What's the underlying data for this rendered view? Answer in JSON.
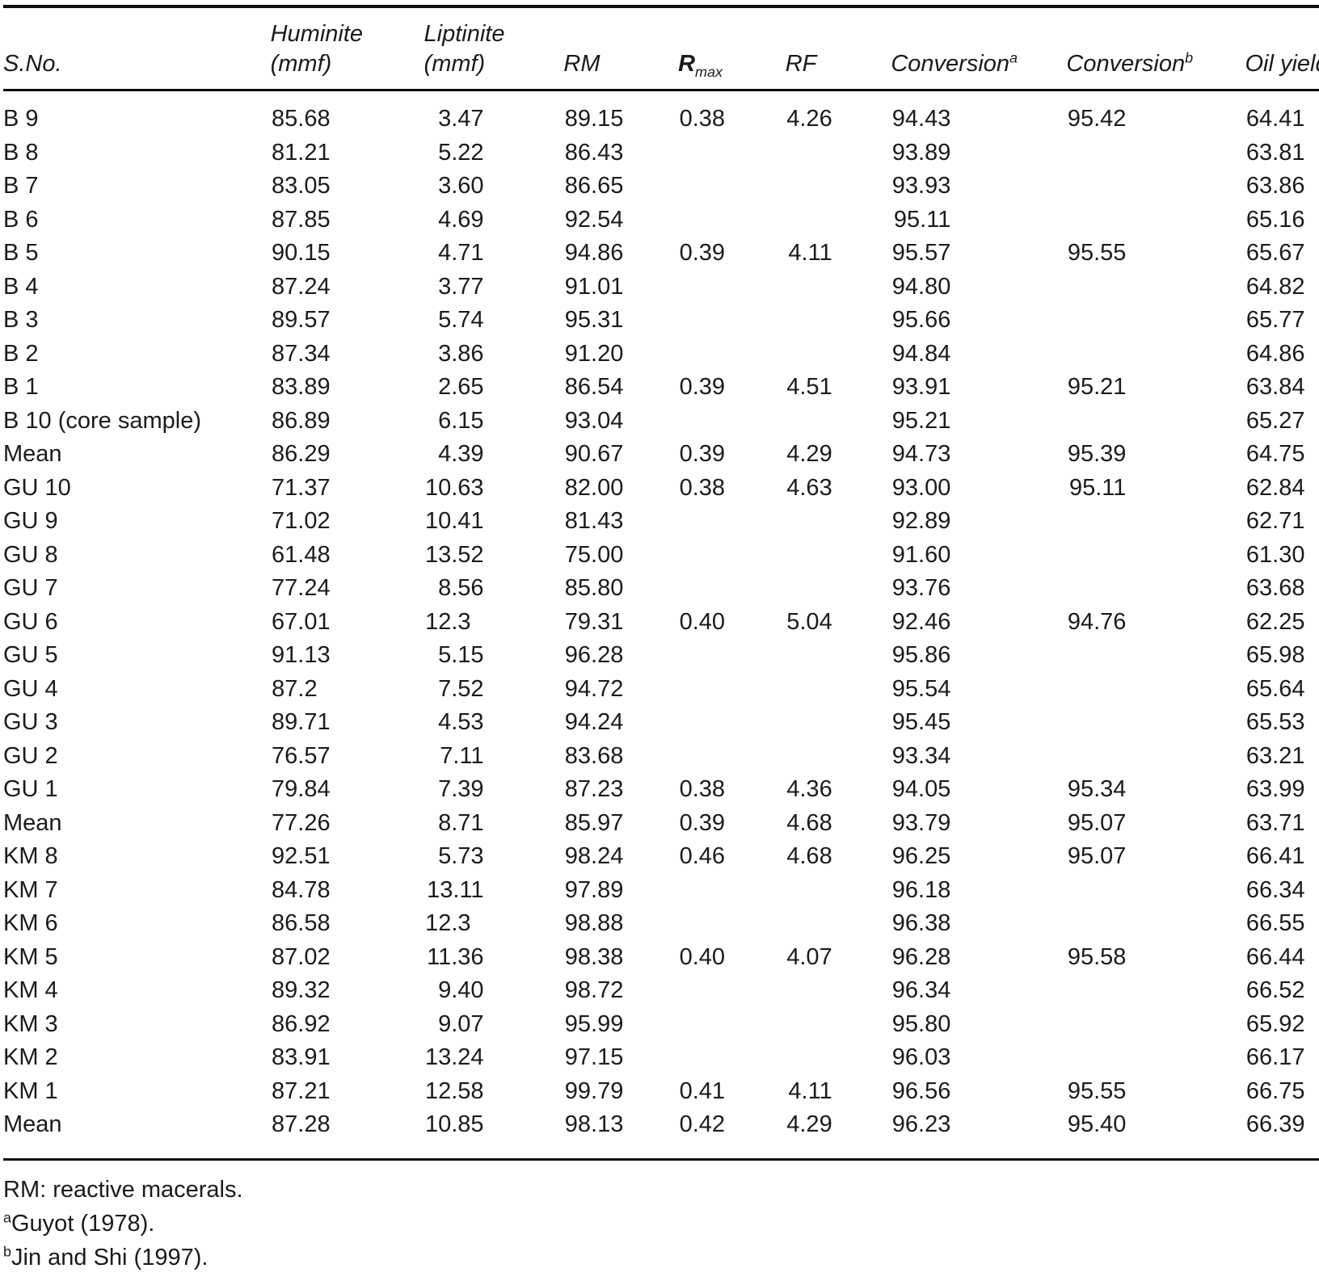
{
  "table": {
    "columns": [
      {
        "key": "sno",
        "label": "S.No."
      },
      {
        "key": "huminite",
        "label": "Huminite",
        "unit": "(mmf)"
      },
      {
        "key": "liptinite",
        "label": "Liptinite",
        "unit": "(mmf)"
      },
      {
        "key": "rm",
        "label": "RM"
      },
      {
        "key": "rmax",
        "label": "R",
        "subscript": "max"
      },
      {
        "key": "rf",
        "label": "RF"
      },
      {
        "key": "conversion_a",
        "label": "Conversion",
        "superscript": "a"
      },
      {
        "key": "conversion_b",
        "label": "Conversion",
        "superscript": "b"
      },
      {
        "key": "oil_yield",
        "label": "Oil yield"
      }
    ],
    "rows": [
      {
        "sno": "B 9",
        "huminite": "85.68",
        "liptinite": "3.47",
        "rm": "89.15",
        "rmax": "0.38",
        "rf": "4.26",
        "conversion_a": "94.43",
        "conversion_b": "95.42",
        "oil_yield": "64.41"
      },
      {
        "sno": "B 8",
        "huminite": "81.21",
        "liptinite": "5.22",
        "rm": "86.43",
        "rmax": "",
        "rf": "",
        "conversion_a": "93.89",
        "conversion_b": "",
        "oil_yield": "63.81"
      },
      {
        "sno": "B 7",
        "huminite": "83.05",
        "liptinite": "3.60",
        "rm": "86.65",
        "rmax": "",
        "rf": "",
        "conversion_a": "93.93",
        "conversion_b": "",
        "oil_yield": "63.86"
      },
      {
        "sno": "B 6",
        "huminite": "87.85",
        "liptinite": "4.69",
        "rm": "92.54",
        "rmax": "",
        "rf": "",
        "conversion_a": "95.11",
        "conversion_b": "",
        "oil_yield": "65.16"
      },
      {
        "sno": "B 5",
        "huminite": "90.15",
        "liptinite": "4.71",
        "rm": "94.86",
        "rmax": "0.39",
        "rf": "4.11",
        "conversion_a": "95.57",
        "conversion_b": "95.55",
        "oil_yield": "65.67"
      },
      {
        "sno": "B 4",
        "huminite": "87.24",
        "liptinite": "3.77",
        "rm": "91.01",
        "rmax": "",
        "rf": "",
        "conversion_a": "94.80",
        "conversion_b": "",
        "oil_yield": "64.82"
      },
      {
        "sno": "B 3",
        "huminite": "89.57",
        "liptinite": "5.74",
        "rm": "95.31",
        "rmax": "",
        "rf": "",
        "conversion_a": "95.66",
        "conversion_b": "",
        "oil_yield": "65.77"
      },
      {
        "sno": "B 2",
        "huminite": "87.34",
        "liptinite": "3.86",
        "rm": "91.20",
        "rmax": "",
        "rf": "",
        "conversion_a": "94.84",
        "conversion_b": "",
        "oil_yield": "64.86"
      },
      {
        "sno": "B 1",
        "huminite": "83.89",
        "liptinite": "2.65",
        "rm": "86.54",
        "rmax": "0.39",
        "rf": "4.51",
        "conversion_a": "93.91",
        "conversion_b": "95.21",
        "oil_yield": "63.84"
      },
      {
        "sno": "B 10 (core sample)",
        "huminite": "86.89",
        "liptinite": "6.15",
        "rm": "93.04",
        "rmax": "",
        "rf": "",
        "conversion_a": "95.21",
        "conversion_b": "",
        "oil_yield": "65.27"
      },
      {
        "sno": "Mean",
        "huminite": "86.29",
        "liptinite": "4.39",
        "rm": "90.67",
        "rmax": "0.39",
        "rf": "4.29",
        "conversion_a": "94.73",
        "conversion_b": "95.39",
        "oil_yield": "64.75"
      },
      {
        "sno": "GU 10",
        "huminite": "71.37",
        "liptinite": "10.63",
        "rm": "82.00",
        "rmax": "0.38",
        "rf": "4.63",
        "conversion_a": "93.00",
        "conversion_b": "95.11",
        "oil_yield": "62.84"
      },
      {
        "sno": "GU 9",
        "huminite": "71.02",
        "liptinite": "10.41",
        "rm": "81.43",
        "rmax": "",
        "rf": "",
        "conversion_a": "92.89",
        "conversion_b": "",
        "oil_yield": "62.71"
      },
      {
        "sno": "GU 8",
        "huminite": "61.48",
        "liptinite": "13.52",
        "rm": "75.00",
        "rmax": "",
        "rf": "",
        "conversion_a": "91.60",
        "conversion_b": "",
        "oil_yield": "61.30"
      },
      {
        "sno": "GU 7",
        "huminite": "77.24",
        "liptinite": "8.56",
        "rm": "85.80",
        "rmax": "",
        "rf": "",
        "conversion_a": "93.76",
        "conversion_b": "",
        "oil_yield": "63.68"
      },
      {
        "sno": "GU 6",
        "huminite": "67.01",
        "liptinite": "12.3",
        "rm": "79.31",
        "rmax": "0.40",
        "rf": "5.04",
        "conversion_a": "92.46",
        "conversion_b": "94.76",
        "oil_yield": "62.25"
      },
      {
        "sno": "GU 5",
        "huminite": "91.13",
        "liptinite": "5.15",
        "rm": "96.28",
        "rmax": "",
        "rf": "",
        "conversion_a": "95.86",
        "conversion_b": "",
        "oil_yield": "65.98"
      },
      {
        "sno": "GU 4",
        "huminite": "87.2",
        "liptinite": "7.52",
        "rm": "94.72",
        "rmax": "",
        "rf": "",
        "conversion_a": "95.54",
        "conversion_b": "",
        "oil_yield": "65.64"
      },
      {
        "sno": "GU 3",
        "huminite": "89.71",
        "liptinite": "4.53",
        "rm": "94.24",
        "rmax": "",
        "rf": "",
        "conversion_a": "95.45",
        "conversion_b": "",
        "oil_yield": "65.53"
      },
      {
        "sno": "GU 2",
        "huminite": "76.57",
        "liptinite": "7.11",
        "rm": "83.68",
        "rmax": "",
        "rf": "",
        "conversion_a": "93.34",
        "conversion_b": "",
        "oil_yield": "63.21"
      },
      {
        "sno": "GU 1",
        "huminite": "79.84",
        "liptinite": "7.39",
        "rm": "87.23",
        "rmax": "0.38",
        "rf": "4.36",
        "conversion_a": "94.05",
        "conversion_b": "95.34",
        "oil_yield": "63.99"
      },
      {
        "sno": "Mean",
        "huminite": "77.26",
        "liptinite": "8.71",
        "rm": "85.97",
        "rmax": "0.39",
        "rf": "4.68",
        "conversion_a": "93.79",
        "conversion_b": "95.07",
        "oil_yield": "63.71"
      },
      {
        "sno": "KM 8",
        "huminite": "92.51",
        "liptinite": "5.73",
        "rm": "98.24",
        "rmax": "0.46",
        "rf": "4.68",
        "conversion_a": "96.25",
        "conversion_b": "95.07",
        "oil_yield": "66.41"
      },
      {
        "sno": "KM 7",
        "huminite": "84.78",
        "liptinite": "13.11",
        "rm": "97.89",
        "rmax": "",
        "rf": "",
        "conversion_a": "96.18",
        "conversion_b": "",
        "oil_yield": "66.34"
      },
      {
        "sno": "KM 6",
        "huminite": "86.58",
        "liptinite": "12.3",
        "rm": "98.88",
        "rmax": "",
        "rf": "",
        "conversion_a": "96.38",
        "conversion_b": "",
        "oil_yield": "66.55"
      },
      {
        "sno": "KM 5",
        "huminite": "87.02",
        "liptinite": "11.36",
        "rm": "98.38",
        "rmax": "0.40",
        "rf": "4.07",
        "conversion_a": "96.28",
        "conversion_b": "95.58",
        "oil_yield": "66.44"
      },
      {
        "sno": "KM 4",
        "huminite": "89.32",
        "liptinite": "9.40",
        "rm": "98.72",
        "rmax": "",
        "rf": "",
        "conversion_a": "96.34",
        "conversion_b": "",
        "oil_yield": "66.52"
      },
      {
        "sno": "KM 3",
        "huminite": "86.92",
        "liptinite": "9.07",
        "rm": "95.99",
        "rmax": "",
        "rf": "",
        "conversion_a": "95.80",
        "conversion_b": "",
        "oil_yield": "65.92"
      },
      {
        "sno": "KM 2",
        "huminite": "83.91",
        "liptinite": "13.24",
        "rm": "97.15",
        "rmax": "",
        "rf": "",
        "conversion_a": "96.03",
        "conversion_b": "",
        "oil_yield": "66.17"
      },
      {
        "sno": "KM 1",
        "huminite": "87.21",
        "liptinite": "12.58",
        "rm": "99.79",
        "rmax": "0.41",
        "rf": "4.11",
        "conversion_a": "96.56",
        "conversion_b": "95.55",
        "oil_yield": "66.75"
      },
      {
        "sno": "Mean",
        "huminite": "87.28",
        "liptinite": "10.85",
        "rm": "98.13",
        "rmax": "0.42",
        "rf": "4.29",
        "conversion_a": "96.23",
        "conversion_b": "95.40",
        "oil_yield": "66.39"
      }
    ]
  },
  "footnotes": [
    {
      "marker": "",
      "text": "RM: reactive macerals."
    },
    {
      "marker": "a",
      "text": "Guyot (1978)."
    },
    {
      "marker": "b",
      "text": "Jin and Shi (1997)."
    }
  ]
}
